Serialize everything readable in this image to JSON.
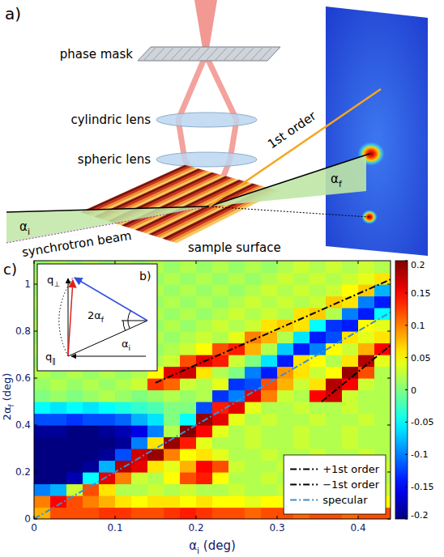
{
  "chart_panel_label": "c)",
  "diagram": {
    "panel_label": "a)",
    "phase_mask": "phase mask",
    "cylindric_lens": "cylindric lens",
    "spheric_lens": "spheric lens",
    "first_order": "1st order",
    "beam": "synchrotron beam",
    "surface": "sample surface",
    "alpha_i": [
      "α",
      "i"
    ],
    "alpha_f": [
      "α",
      "f"
    ]
  },
  "inset": {
    "panel_label": "b)",
    "q_perp": [
      "q",
      "⊥"
    ],
    "q_par": [
      "q",
      "∥"
    ],
    "angle_f": [
      "2α",
      "f"
    ],
    "angle_i": [
      "α",
      "i"
    ]
  },
  "chart_data": {
    "type": "heatmap",
    "x_label": [
      "α",
      "i",
      " (deg)"
    ],
    "y_label": [
      "2α",
      "f",
      " (deg)"
    ],
    "xlim": [
      0,
      0.44
    ],
    "ylim": [
      0,
      1.1
    ],
    "xticks": [
      0,
      0.1,
      0.2,
      0.3,
      0.4
    ],
    "yticks": [
      0,
      0.2,
      0.4,
      0.6,
      0.8,
      1
    ],
    "grid": false,
    "legend": "lower right",
    "x_edges": [
      0,
      0.02,
      0.04,
      0.06,
      0.08,
      0.1,
      0.12,
      0.14,
      0.16,
      0.18,
      0.2,
      0.22,
      0.24,
      0.26,
      0.28,
      0.3,
      0.32,
      0.34,
      0.36,
      0.38,
      0.4,
      0.42,
      0.44
    ],
    "y_edges": [
      0,
      0.05,
      0.1,
      0.15,
      0.2,
      0.25,
      0.3,
      0.35,
      0.4,
      0.45,
      0.5,
      0.55,
      0.6,
      0.65,
      0.7,
      0.75,
      0.8,
      0.85,
      0.9,
      0.95,
      1,
      1.05,
      1.1
    ],
    "z": [
      [
        0.08,
        0.12,
        0.12,
        0.12,
        0.13,
        0.13,
        0.12,
        0.12,
        0.13,
        0.14,
        0.13,
        0.12,
        0.12,
        0.11,
        0.12,
        0.12,
        0.11,
        0.12,
        0.12,
        0.11,
        0.12,
        0.12
      ],
      [
        0.1,
        0.15,
        0.12,
        0.1,
        0.08,
        0.06,
        0.05,
        0.06,
        0.06,
        0.05,
        0.06,
        0.05,
        0.05,
        0.04,
        0.05,
        0.05,
        0.04,
        0.05,
        0.04,
        0.05,
        0.04,
        0.05
      ],
      [
        -0.1,
        -0.08,
        0.03,
        0.12,
        0.06,
        0.02,
        0.02,
        0.03,
        0.02,
        0.03,
        0.02,
        0.02,
        0.03,
        0.02,
        0.02,
        0.03,
        0.02,
        0.02,
        0.03,
        0.02,
        0.02,
        0.03
      ],
      [
        -0.2,
        -0.2,
        -0.18,
        -0.05,
        0.16,
        0.1,
        0.03,
        0.02,
        0.05,
        0.12,
        0.14,
        0.05,
        0.02,
        0.02,
        0.03,
        0.02,
        0.02,
        0.03,
        0.02,
        0.02,
        0.03,
        0.02
      ],
      [
        -0.2,
        -0.2,
        -0.2,
        -0.19,
        -0.08,
        0.18,
        0.16,
        0.06,
        0.04,
        0.08,
        0.15,
        0.12,
        0.03,
        0.02,
        0.02,
        0.03,
        0.02,
        0.02,
        0.03,
        0.02,
        0.02,
        0.03
      ],
      [
        -0.2,
        -0.2,
        -0.2,
        -0.2,
        -0.19,
        -0.12,
        0.17,
        0.19,
        0.1,
        0.05,
        0.06,
        0.04,
        0.02,
        0.02,
        0.03,
        0.02,
        0.02,
        0.03,
        0.02,
        0.02,
        0.03,
        0.02
      ],
      [
        -0.2,
        -0.2,
        -0.2,
        -0.2,
        -0.2,
        -0.19,
        -0.1,
        0.06,
        0.19,
        0.14,
        0.04,
        0.02,
        0.02,
        0.03,
        0.02,
        0.02,
        0.03,
        0.02,
        0.02,
        0.03,
        0.02,
        0.02
      ],
      [
        -0.19,
        -0.19,
        -0.2,
        -0.2,
        -0.19,
        -0.18,
        -0.16,
        -0.1,
        0.02,
        0.2,
        0.15,
        0.04,
        0.02,
        0.03,
        0.02,
        0.02,
        0.03,
        0.02,
        0.02,
        0.03,
        0.02,
        0.02
      ],
      [
        -0.12,
        -0.12,
        -0.13,
        -0.12,
        -0.12,
        -0.11,
        -0.08,
        -0.06,
        0.0,
        -0.05,
        0.19,
        0.16,
        0.04,
        0.02,
        0.03,
        0.02,
        0.02,
        0.03,
        0.02,
        0.02,
        0.03,
        0.02
      ],
      [
        -0.05,
        -0.06,
        -0.05,
        -0.06,
        -0.05,
        -0.04,
        -0.03,
        -0.02,
        0.0,
        0.0,
        -0.12,
        0.14,
        0.16,
        0.04,
        0.02,
        0.02,
        0.03,
        0.02,
        0.02,
        0.03,
        0.02,
        0.02
      ],
      [
        0.0,
        0.01,
        0.0,
        0.01,
        0.02,
        0.01,
        0.0,
        0.01,
        0.02,
        0.01,
        0.02,
        -0.13,
        -0.1,
        0.16,
        0.1,
        0.03,
        0.02,
        0.15,
        0.17,
        0.03,
        0.02,
        0.02
      ],
      [
        0.01,
        0.02,
        0.01,
        0.02,
        0.01,
        0.02,
        0.03,
        0.13,
        0.11,
        0.03,
        0.02,
        0.04,
        -0.13,
        -0.12,
        0.12,
        0.08,
        0.03,
        0.06,
        0.18,
        0.15,
        0.03,
        0.02
      ],
      [
        0.02,
        0.01,
        0.02,
        0.01,
        0.02,
        0.01,
        0.02,
        0.05,
        0.16,
        0.17,
        0.06,
        0.02,
        0.0,
        -0.1,
        -0.14,
        0.09,
        0.06,
        0.03,
        0.05,
        0.19,
        0.12,
        0.02
      ],
      [
        0.01,
        0.02,
        0.01,
        0.02,
        0.01,
        0.02,
        0.01,
        0.02,
        0.03,
        0.12,
        0.16,
        0.14,
        0.03,
        0.0,
        -0.06,
        -0.14,
        0.06,
        0.05,
        0.02,
        0.06,
        0.18,
        0.04
      ],
      [
        0.02,
        0.01,
        0.02,
        0.01,
        0.02,
        0.01,
        0.02,
        0.01,
        0.02,
        0.03,
        0.05,
        0.12,
        0.14,
        0.08,
        0.02,
        -0.07,
        -0.14,
        -0.1,
        0.05,
        0.03,
        0.08,
        0.15
      ],
      [
        0.01,
        0.02,
        0.01,
        0.02,
        0.01,
        0.02,
        0.01,
        0.02,
        0.01,
        0.02,
        0.03,
        0.02,
        0.04,
        0.1,
        0.08,
        0.02,
        -0.06,
        -0.14,
        -0.12,
        0.06,
        0.04,
        0.06
      ],
      [
        0.02,
        0.01,
        0.02,
        0.01,
        0.02,
        0.01,
        0.02,
        0.01,
        0.02,
        0.01,
        0.02,
        0.03,
        0.02,
        0.03,
        0.06,
        0.07,
        0.06,
        -0.05,
        -0.13,
        -0.14,
        0.05,
        0.04
      ],
      [
        0.01,
        0.02,
        0.01,
        0.02,
        0.01,
        0.02,
        0.01,
        0.02,
        0.01,
        0.02,
        0.01,
        0.02,
        0.03,
        0.02,
        0.03,
        0.02,
        0.06,
        0.07,
        0.02,
        -0.1,
        -0.14,
        -0.05
      ],
      [
        0.02,
        0.01,
        0.02,
        0.01,
        0.02,
        0.01,
        0.02,
        0.01,
        0.02,
        0.01,
        0.02,
        0.01,
        0.02,
        0.03,
        0.02,
        0.03,
        0.02,
        0.03,
        0.07,
        0.06,
        -0.1,
        -0.14
      ],
      [
        0.01,
        0.02,
        0.01,
        0.02,
        0.01,
        0.02,
        0.01,
        0.02,
        0.01,
        0.02,
        0.01,
        0.02,
        0.01,
        0.02,
        0.03,
        0.02,
        0.03,
        0.02,
        0.03,
        0.05,
        0.07,
        -0.08
      ],
      [
        0.02,
        0.01,
        0.02,
        0.01,
        0.02,
        0.01,
        0.02,
        0.01,
        0.02,
        0.01,
        0.02,
        0.01,
        0.02,
        0.01,
        0.02,
        0.03,
        0.02,
        0.03,
        0.02,
        0.03,
        0.04,
        0.06
      ],
      [
        0.01,
        0.02,
        0.01,
        0.02,
        0.01,
        0.02,
        0.01,
        0.02,
        0.01,
        0.02,
        0.01,
        0.02,
        0.01,
        0.02,
        0.01,
        0.02,
        0.03,
        0.02,
        0.03,
        0.02,
        0.03,
        0.02
      ]
    ],
    "colorbar": {
      "lim": [
        -0.2,
        0.2
      ],
      "ticks": [
        -0.2,
        -0.15,
        -0.1,
        -0.05,
        0,
        0.05,
        0.1,
        0.15,
        0.2
      ]
    },
    "series": [
      {
        "name": "+1st order",
        "type": "line",
        "color": "#000000",
        "line_style": "dashdot",
        "x": [
          0.15,
          0.44
        ],
        "values": [
          0.58,
          1.02
        ]
      },
      {
        "name": "−1st order",
        "type": "line",
        "color": "#000000",
        "line_style": "dashdot",
        "x": [
          0.355,
          0.44
        ],
        "values": [
          0.5,
          0.74
        ]
      },
      {
        "name": "specular",
        "type": "line",
        "color": "#3a8fd0",
        "line_style": "dashdot",
        "x": [
          0,
          0.44
        ],
        "values": [
          0,
          0.88
        ]
      }
    ]
  }
}
